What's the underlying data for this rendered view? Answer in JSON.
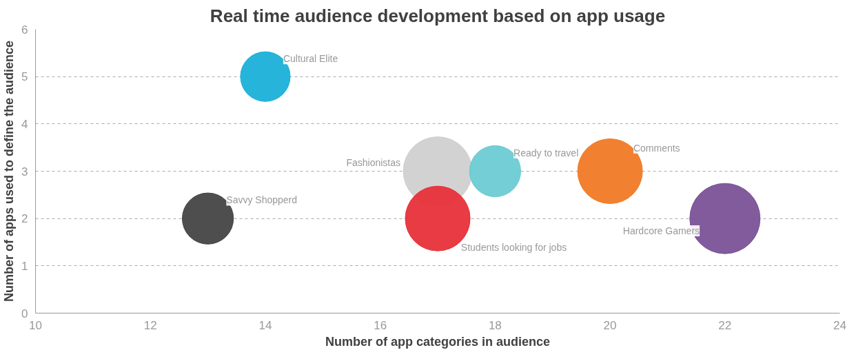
{
  "chart_data": {
    "type": "bubble",
    "title": "Real time audience development based on app usage",
    "xlabel": "Number of app categories in audience",
    "ylabel": "Number of apps used to define the audience",
    "xlim": [
      10,
      24
    ],
    "xticks": [
      10,
      12,
      14,
      16,
      18,
      20,
      22,
      24
    ],
    "ylim": [
      0,
      6
    ],
    "yticks": [
      0,
      1,
      2,
      3,
      4,
      5,
      6
    ],
    "grid": "y",
    "series": [
      {
        "name": "Cultural Elite",
        "color": "#1ab0d8",
        "x": [
          14
        ],
        "values": [
          5
        ],
        "sizes": [
          0.5
        ]
      },
      {
        "name": "Savvy Shopperd",
        "color": "#444444",
        "x": [
          13
        ],
        "values": [
          2
        ],
        "sizes": [
          0.53
        ]
      },
      {
        "name": "Fashionistas",
        "color": "#d0d0d0",
        "x": [
          17
        ],
        "values": [
          3
        ],
        "sizes": [
          0.96
        ]
      },
      {
        "name": "Ready to travel",
        "color": "#6ccbd3",
        "x": [
          18
        ],
        "values": [
          3
        ],
        "sizes": [
          0.53
        ]
      },
      {
        "name": "Students looking for jobs",
        "color": "#e8303a",
        "x": [
          17
        ],
        "values": [
          2
        ],
        "sizes": [
          0.85
        ]
      },
      {
        "name": "Comments",
        "color": "#f07a26",
        "x": [
          20
        ],
        "values": [
          3
        ],
        "sizes": [
          0.85
        ]
      },
      {
        "name": "Hardcore Gamers",
        "color": "#7a5296",
        "x": [
          22
        ],
        "values": [
          2
        ],
        "sizes": [
          1
        ]
      }
    ]
  }
}
